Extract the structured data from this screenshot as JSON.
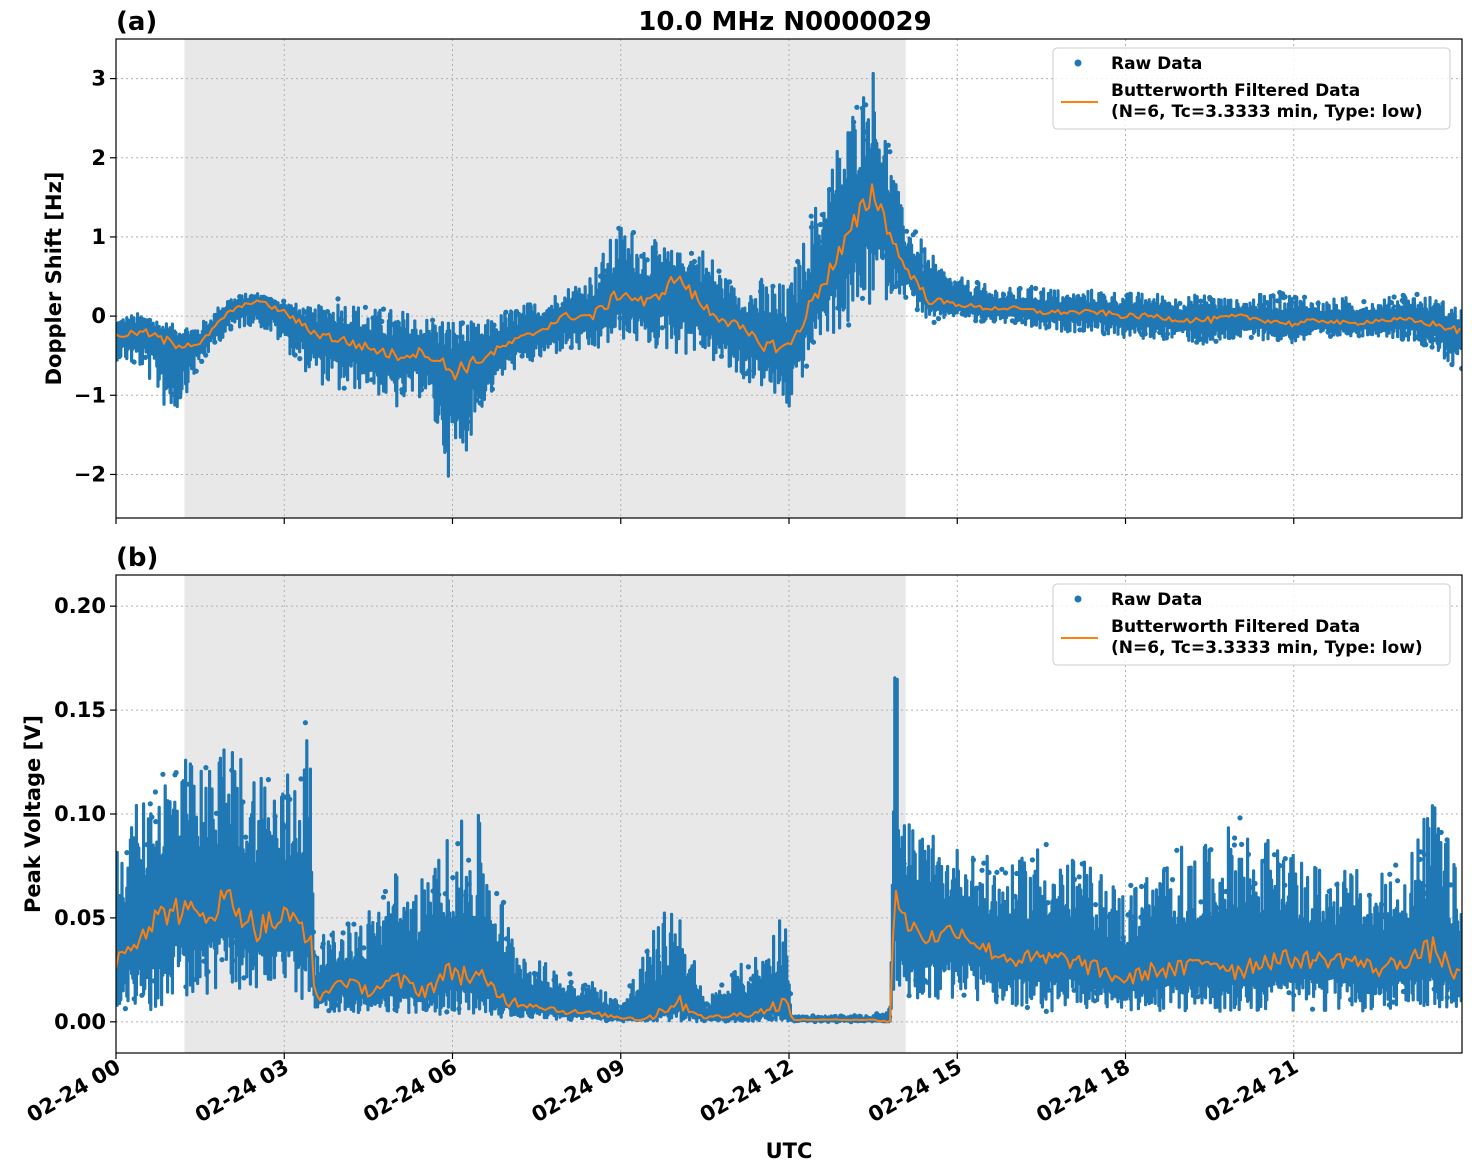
{
  "figure": {
    "title": "10.0 MHz N0000029",
    "xlabel": "UTC",
    "xticks": [
      {
        "hour": 0,
        "label": "02-24 00"
      },
      {
        "hour": 3,
        "label": "02-24 03"
      },
      {
        "hour": 6,
        "label": "02-24 06"
      },
      {
        "hour": 9,
        "label": "02-24 09"
      },
      {
        "hour": 12,
        "label": "02-24 12"
      },
      {
        "hour": 15,
        "label": "02-24 15"
      },
      {
        "hour": 18,
        "label": "02-24 18"
      },
      {
        "hour": 21,
        "label": "02-24 21"
      }
    ],
    "xlim": [
      0,
      24
    ],
    "shaded_region": [
      1.22,
      14.08
    ],
    "colors": {
      "raw": "#1f77b4",
      "filtered": "#ff7f0e",
      "shade": "#e8e8e8",
      "grid": "#b0b0b0"
    }
  },
  "chart_data": [
    {
      "type": "scatter",
      "panel_label": "(a)",
      "ylabel": "Doppler Shift [Hz]",
      "ylim": [
        -2.55,
        3.5
      ],
      "yticks": [
        {
          "v": -2,
          "label": "−2"
        },
        {
          "v": -1,
          "label": "−1"
        },
        {
          "v": 0,
          "label": "0"
        },
        {
          "v": 1,
          "label": "1"
        },
        {
          "v": 2,
          "label": "2"
        },
        {
          "v": 3,
          "label": "3"
        }
      ],
      "grid": true,
      "legend": {
        "placement": "top-right",
        "entries": [
          "Raw Data",
          "Butterworth Filtered Data",
          "(N=6, Tc=3.3333 min, Type: low)"
        ]
      },
      "series": [
        {
          "name": "Raw Data",
          "x": [
            0,
            0.5,
            1.0,
            1.5,
            2.0,
            2.5,
            3.0,
            3.5,
            4.0,
            4.5,
            5.0,
            5.5,
            6.0,
            6.5,
            7.0,
            7.5,
            8.0,
            8.5,
            9.0,
            9.5,
            10.0,
            10.5,
            11.0,
            11.5,
            12.0,
            12.5,
            13.0,
            13.5,
            14.0,
            14.5,
            15.0,
            15.5,
            16.0,
            16.5,
            17.0,
            17.5,
            18.0,
            18.5,
            19.0,
            19.5,
            20.0,
            20.5,
            21.0,
            21.5,
            22.0,
            22.5,
            23.0,
            23.5,
            24.0
          ],
          "y_low": [
            -0.55,
            -0.7,
            -1.35,
            -0.6,
            -0.2,
            -0.1,
            -0.4,
            -0.8,
            -1.0,
            -0.9,
            -1.2,
            -1.0,
            -2.2,
            -1.2,
            -0.7,
            -0.6,
            -0.45,
            -0.5,
            -0.3,
            -0.4,
            -0.5,
            -0.5,
            -0.8,
            -0.9,
            -1.25,
            -0.3,
            -0.2,
            0.1,
            0.3,
            -0.1,
            0.0,
            -0.1,
            -0.1,
            -0.2,
            -0.2,
            -0.2,
            -0.3,
            -0.3,
            -0.3,
            -0.4,
            -0.3,
            -0.3,
            -0.35,
            -0.3,
            -0.25,
            -0.25,
            -0.3,
            -0.4,
            -0.8
          ],
          "y_high": [
            0.0,
            0.05,
            -0.1,
            -0.1,
            0.25,
            0.3,
            0.2,
            0.1,
            0.25,
            0.1,
            0.1,
            0.0,
            0.0,
            -0.1,
            0.1,
            0.2,
            0.35,
            0.6,
            1.2,
            1.0,
            0.8,
            0.9,
            0.4,
            0.5,
            0.4,
            1.5,
            2.5,
            3.2,
            1.4,
            0.8,
            0.5,
            0.4,
            0.35,
            0.4,
            0.3,
            0.35,
            0.3,
            0.3,
            0.25,
            0.3,
            0.2,
            0.3,
            0.3,
            0.2,
            0.25,
            0.2,
            0.3,
            0.25,
            0.1
          ]
        },
        {
          "name": "Butterworth Filtered Data",
          "x": [
            0,
            0.5,
            1.0,
            1.5,
            2.0,
            2.5,
            3.0,
            3.5,
            4.0,
            4.5,
            5.0,
            5.5,
            6.0,
            6.5,
            7.0,
            7.5,
            8.0,
            8.5,
            9.0,
            9.5,
            10.0,
            10.5,
            11.0,
            11.5,
            12.0,
            12.5,
            13.0,
            13.5,
            14.0,
            14.5,
            15.0,
            15.5,
            16.0,
            16.5,
            17.0,
            17.5,
            18.0,
            18.5,
            19.0,
            19.5,
            20.0,
            20.5,
            21.0,
            21.5,
            22.0,
            22.5,
            23.0,
            23.5,
            24.0
          ],
          "y": [
            -0.25,
            -0.2,
            -0.35,
            -0.35,
            0.05,
            0.2,
            0.05,
            -0.2,
            -0.3,
            -0.4,
            -0.5,
            -0.45,
            -0.7,
            -0.55,
            -0.35,
            -0.2,
            0.0,
            0.0,
            0.3,
            0.15,
            0.5,
            0.1,
            -0.1,
            -0.35,
            -0.4,
            0.3,
            0.9,
            1.6,
            0.7,
            0.2,
            0.15,
            0.1,
            0.1,
            0.05,
            0.05,
            0.05,
            0.0,
            0.0,
            -0.05,
            -0.05,
            0.0,
            -0.05,
            -0.1,
            -0.05,
            -0.1,
            -0.05,
            -0.05,
            -0.1,
            -0.2
          ]
        }
      ]
    },
    {
      "type": "scatter",
      "panel_label": "(b)",
      "ylabel": "Peak Voltage [V]",
      "ylim": [
        -0.015,
        0.215
      ],
      "yticks": [
        {
          "v": 0.0,
          "label": "0.00"
        },
        {
          "v": 0.05,
          "label": "0.05"
        },
        {
          "v": 0.1,
          "label": "0.10"
        },
        {
          "v": 0.15,
          "label": "0.15"
        },
        {
          "v": 0.2,
          "label": "0.20"
        }
      ],
      "grid": true,
      "legend": {
        "placement": "top-right",
        "entries": [
          "Raw Data",
          "Butterworth Filtered Data",
          "(N=6, Tc=3.3333 min, Type: low)"
        ]
      },
      "series": [
        {
          "name": "Raw Data",
          "x": [
            0,
            0.5,
            1.0,
            1.5,
            2.0,
            2.5,
            3.0,
            3.45,
            3.55,
            4.0,
            4.5,
            5.0,
            5.5,
            6.0,
            6.5,
            7.0,
            7.5,
            8.0,
            8.5,
            9.0,
            9.5,
            10.0,
            10.5,
            11.0,
            11.5,
            11.95,
            12.05,
            12.5,
            13.0,
            13.5,
            13.8,
            13.9,
            14.0,
            14.5,
            15.0,
            15.5,
            16.0,
            16.5,
            17.0,
            17.5,
            18.0,
            18.5,
            19.0,
            19.5,
            20.0,
            20.5,
            21.0,
            21.5,
            22.0,
            22.5,
            23.0,
            23.5,
            24.0
          ],
          "y_low": [
            0.005,
            0.005,
            0.008,
            0.01,
            0.015,
            0.015,
            0.01,
            0.01,
            0.005,
            0.005,
            0.004,
            0.004,
            0.004,
            0.003,
            0.003,
            0.002,
            0.002,
            0.001,
            0.001,
            0.0,
            0.0,
            0.0,
            0.0,
            0.0,
            0.0,
            0.0,
            0.0,
            0.0,
            0.0,
            0.0,
            0.0,
            0.01,
            0.01,
            0.01,
            0.01,
            0.01,
            0.005,
            0.005,
            0.005,
            0.005,
            0.005,
            0.005,
            0.005,
            0.005,
            0.005,
            0.005,
            0.005,
            0.005,
            0.005,
            0.005,
            0.005,
            0.005,
            0.005
          ],
          "y_high": [
            0.09,
            0.11,
            0.13,
            0.125,
            0.135,
            0.13,
            0.12,
            0.15,
            0.04,
            0.045,
            0.055,
            0.075,
            0.07,
            0.095,
            0.1,
            0.05,
            0.03,
            0.025,
            0.02,
            0.01,
            0.04,
            0.065,
            0.01,
            0.025,
            0.035,
            0.06,
            0.003,
            0.003,
            0.003,
            0.003,
            0.01,
            0.2,
            0.1,
            0.09,
            0.085,
            0.08,
            0.075,
            0.09,
            0.08,
            0.075,
            0.065,
            0.075,
            0.085,
            0.085,
            0.1,
            0.09,
            0.08,
            0.075,
            0.075,
            0.07,
            0.08,
            0.11,
            0.065
          ]
        },
        {
          "name": "Butterworth Filtered Data",
          "x": [
            0,
            0.5,
            1.0,
            1.5,
            2.0,
            2.5,
            3.0,
            3.45,
            3.55,
            4.0,
            4.5,
            5.0,
            5.5,
            6.0,
            6.5,
            7.0,
            7.5,
            8.0,
            8.5,
            9.0,
            9.5,
            10.0,
            10.5,
            11.0,
            11.5,
            11.95,
            12.05,
            12.5,
            13.0,
            13.5,
            13.8,
            13.9,
            14.0,
            14.5,
            15.0,
            15.5,
            16.0,
            16.5,
            17.0,
            17.5,
            18.0,
            18.5,
            19.0,
            19.5,
            20.0,
            20.5,
            21.0,
            21.5,
            22.0,
            22.5,
            23.0,
            23.5,
            24.0
          ],
          "y": [
            0.03,
            0.045,
            0.055,
            0.05,
            0.06,
            0.045,
            0.05,
            0.045,
            0.01,
            0.02,
            0.015,
            0.02,
            0.015,
            0.025,
            0.02,
            0.01,
            0.008,
            0.005,
            0.004,
            0.002,
            0.002,
            0.01,
            0.002,
            0.003,
            0.005,
            0.01,
            0.001,
            0.001,
            0.001,
            0.001,
            0.0,
            0.07,
            0.05,
            0.04,
            0.045,
            0.035,
            0.03,
            0.03,
            0.03,
            0.025,
            0.02,
            0.025,
            0.025,
            0.03,
            0.025,
            0.03,
            0.03,
            0.03,
            0.03,
            0.025,
            0.03,
            0.035,
            0.02
          ]
        }
      ]
    }
  ]
}
